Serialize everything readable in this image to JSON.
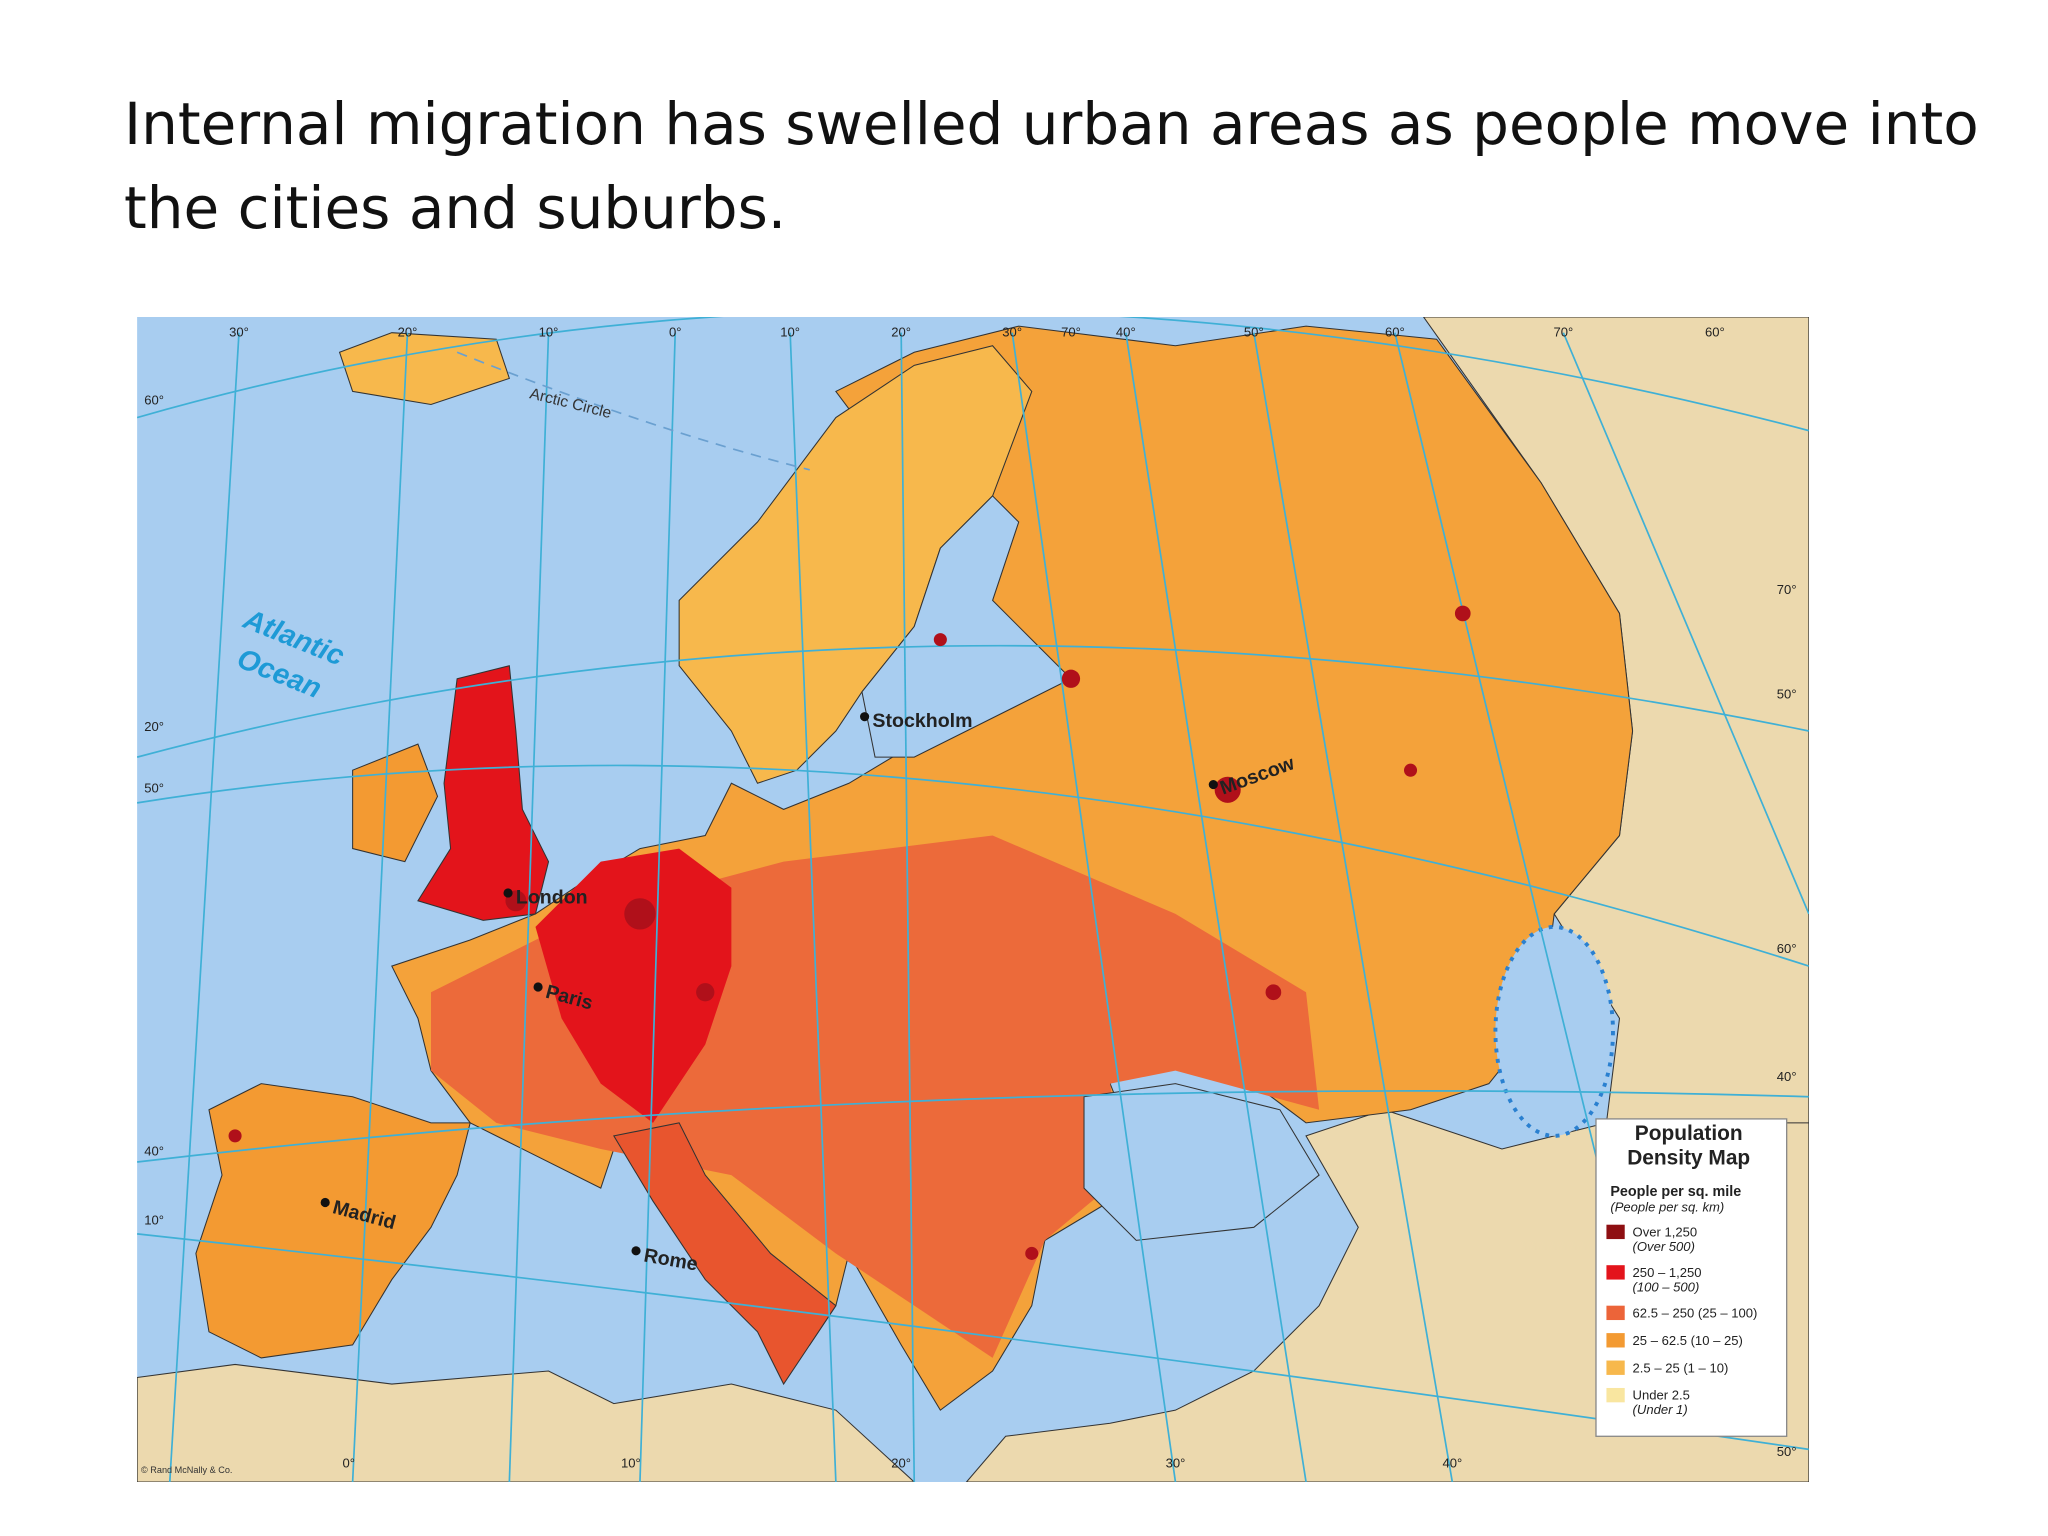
{
  "slide": {
    "title": "Internal migration has swelled urban areas as people move into the cities and suburbs."
  },
  "map": {
    "arctic_circle": "Arctic Circle",
    "ocean_lines": [
      "Atlantic",
      "Ocean"
    ],
    "cities": [
      "Stockholm",
      "Moscow",
      "London",
      "Paris",
      "Madrid",
      "Rome"
    ],
    "graticule_labels": {
      "top": [
        "30°",
        "20°",
        "10°",
        "0°",
        "10°",
        "20°",
        "30°",
        "70°",
        "40°",
        "50°",
        "60°",
        "70°",
        "60°"
      ],
      "left": [
        "60°",
        "20°",
        "50°",
        "40°",
        "10°"
      ],
      "right": [
        "70°",
        "50°",
        "60°",
        "40°",
        "50°"
      ],
      "bottom": [
        "0°",
        "10°",
        "20°",
        "30°",
        "40°"
      ]
    },
    "credit": "© Rand McNally & Co."
  },
  "legend": {
    "title_lines": [
      "Population",
      "Density Map"
    ],
    "unit": "People per sq. mile",
    "unit_alt": "(People per sq. km)",
    "items": [
      {
        "label": "Over 1,250",
        "sublabel": "(Over 500)",
        "color": "#8e0f12"
      },
      {
        "label": "250 – 1,250",
        "sublabel": "(100 – 500)",
        "color": "#e3141b"
      },
      {
        "label": "62.5 – 250 (25 – 100)",
        "color": "#ec6439"
      },
      {
        "label": "25 – 62.5 (10 – 25)",
        "color": "#f39a32"
      },
      {
        "label": "2.5 – 25 (1 – 10)",
        "color": "#f7b84c"
      },
      {
        "label": "Under 2.5",
        "sublabel": "(Under 1)",
        "color": "#f9e6a0"
      }
    ]
  }
}
